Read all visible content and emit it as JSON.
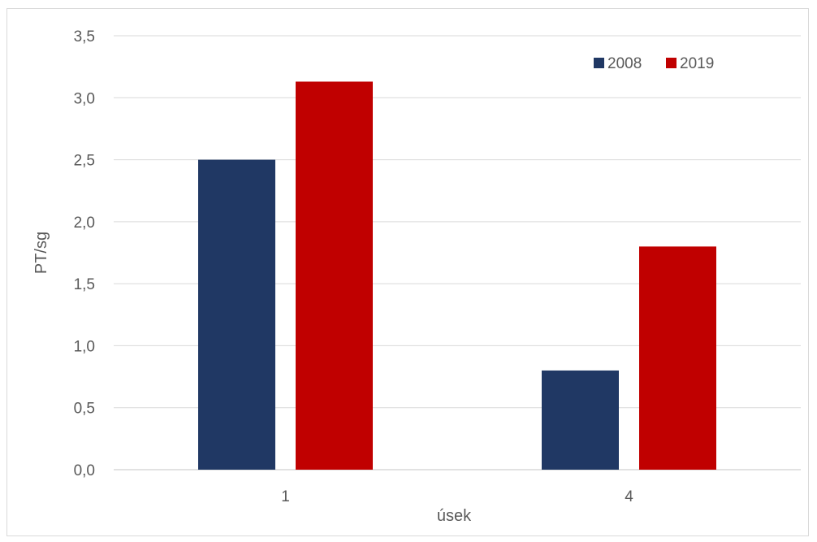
{
  "chart_data": {
    "type": "bar",
    "title": "",
    "xlabel": "úsek",
    "ylabel": "PT/sg",
    "categories": [
      "1",
      "4"
    ],
    "series": [
      {
        "name": "2008",
        "values": [
          2.5,
          0.8
        ],
        "color": "#203864"
      },
      {
        "name": "2019",
        "values": [
          3.13,
          1.8
        ],
        "color": "#C00000"
      }
    ],
    "ylim": [
      0,
      3.5
    ],
    "yticks": [
      "0,0",
      "0,5",
      "1,0",
      "1,5",
      "2,0",
      "2,5",
      "3,0",
      "3,5"
    ],
    "ytick_values": [
      0,
      0.5,
      1.0,
      1.5,
      2.0,
      2.5,
      3.0,
      3.5
    ],
    "grid": true,
    "legend_position": "top-right",
    "gridline_color": "#d9d9d9",
    "text_color": "#595959"
  }
}
